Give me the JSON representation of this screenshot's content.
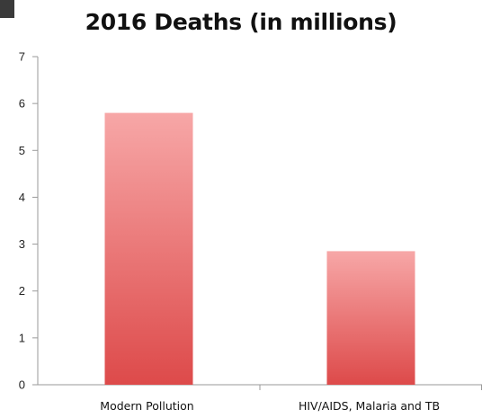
{
  "chart_data": {
    "type": "bar",
    "title": "2016 Deaths (in millions)",
    "categories": [
      "Modern Pollution",
      "HIV/AIDS, Malaria and TB"
    ],
    "values": [
      5.8,
      2.85
    ],
    "ylim": [
      0,
      7
    ],
    "yticks": [
      "0",
      "1",
      "2",
      "3",
      "4",
      "5",
      "6",
      "7"
    ],
    "xlabel": "",
    "ylabel": "",
    "grid": false,
    "colors": {
      "bar_top": "#f7a7a7",
      "bar_bottom": "#dd4a4a",
      "axis": "#9a9a9a"
    }
  }
}
